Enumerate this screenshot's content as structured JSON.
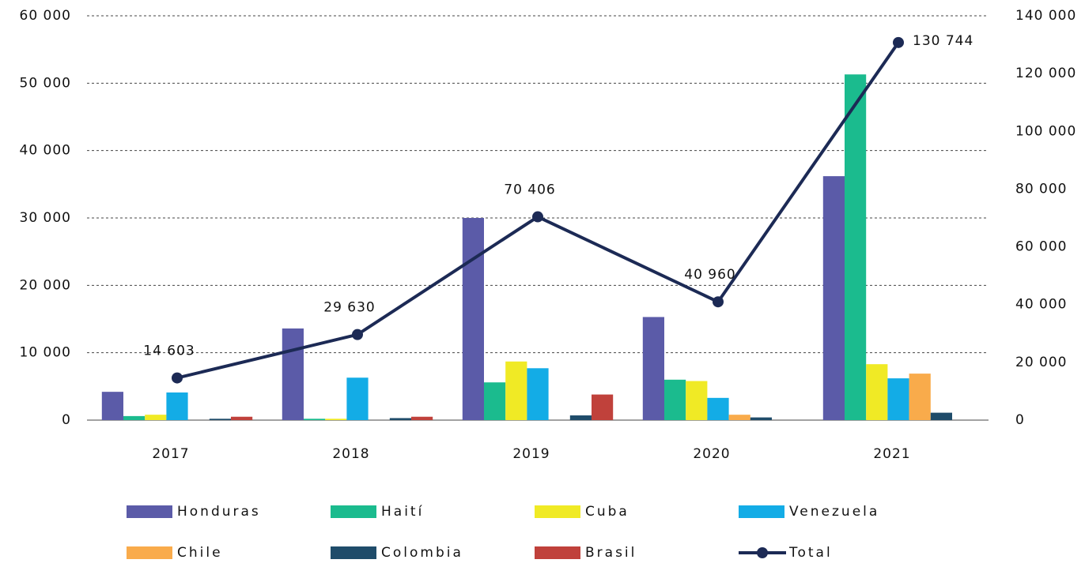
{
  "chart_data": {
    "type": "bar",
    "categories": [
      "2017",
      "2018",
      "2019",
      "2020",
      "2021"
    ],
    "series": [
      {
        "name": "Honduras",
        "color": "#5b5ba8",
        "values": [
          4200,
          13600,
          30000,
          15300,
          36200
        ]
      },
      {
        "name": "Haití",
        "color": "#1bbb8e",
        "values": [
          600,
          200,
          5600,
          6000,
          51300
        ]
      },
      {
        "name": "Cuba",
        "color": "#f0ea25",
        "values": [
          800,
          200,
          8700,
          5800,
          8300
        ]
      },
      {
        "name": "Venezuela",
        "color": "#13ace6",
        "values": [
          4100,
          6300,
          7700,
          3300,
          6200
        ]
      },
      {
        "name": "Chile",
        "color": "#f9ab4b",
        "values": [
          0,
          0,
          0,
          800,
          6900
        ]
      },
      {
        "name": "Colombia",
        "color": "#1f4c6a",
        "values": [
          200,
          300,
          700,
          400,
          1100
        ]
      },
      {
        "name": "Brasil",
        "color": "#c0413b",
        "values": [
          500,
          500,
          3800,
          0,
          0
        ]
      },
      {
        "name": "Total",
        "type": "line",
        "axis": "y2",
        "color": "#1c2a55",
        "values": [
          14603,
          29630,
          70406,
          40960,
          130744
        ],
        "value_labels": [
          "14 603",
          "29 630",
          "70 406",
          "40 960",
          "130 744"
        ]
      }
    ],
    "ylim": [
      0,
      60000
    ],
    "yticks": [
      0,
      {
        "value": 10000,
        "label": "10 000"
      },
      {
        "value": 20000,
        "label": "20 000"
      },
      {
        "value": 30000,
        "label": "30 000"
      },
      {
        "value": 40000,
        "label": "40 000"
      },
      {
        "value": 50000,
        "label": "50 000"
      },
      {
        "value": 60000,
        "label": "60 000"
      }
    ],
    "y2lim": [
      0,
      140000
    ],
    "y2ticks": [
      0,
      {
        "value": 20000,
        "label": "20 000"
      },
      {
        "value": 40000,
        "label": "40 000"
      },
      {
        "value": 60000,
        "label": "60 000"
      },
      {
        "value": 80000,
        "label": "80 000"
      },
      {
        "value": 100000,
        "label": "100 000"
      },
      {
        "value": 120000,
        "label": "120 000"
      },
      {
        "value": 140000,
        "label": "140 000"
      }
    ],
    "grid": true,
    "legend": "bottom"
  }
}
